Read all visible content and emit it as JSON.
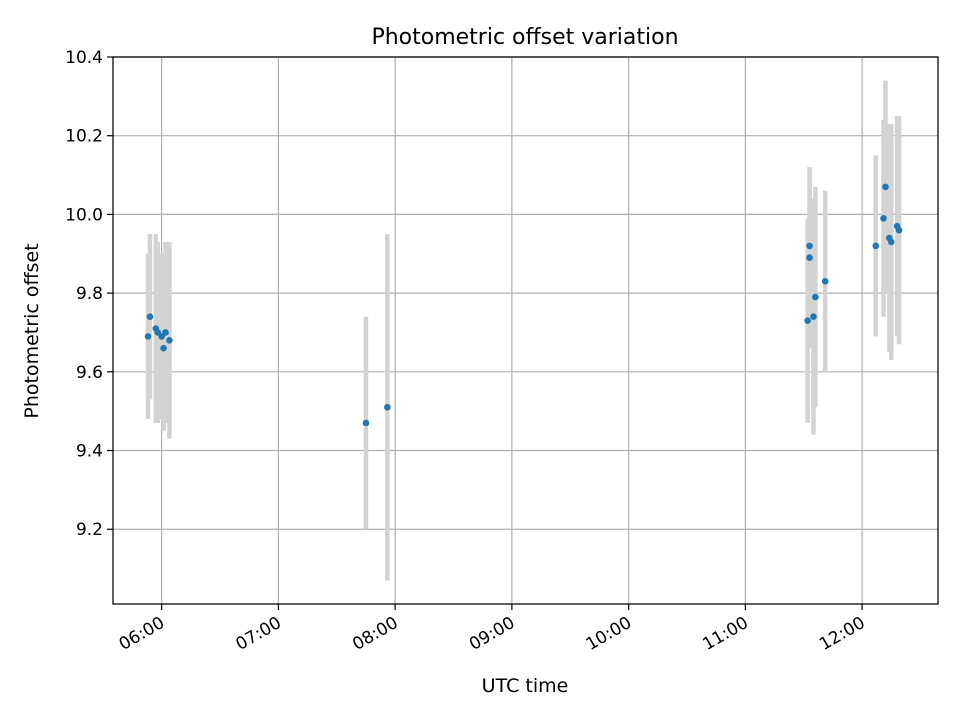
{
  "chart_data": {
    "type": "scatter",
    "title": "Photometric offset variation",
    "xlabel": "UTC time",
    "ylabel": "Photometric offset",
    "grid": true,
    "x_is_time": true,
    "xlim": [
      "05:35",
      "12:39"
    ],
    "ylim": [
      9.01,
      10.4
    ],
    "xticks": [
      "06:00",
      "07:00",
      "08:00",
      "09:00",
      "10:00",
      "11:00",
      "12:00"
    ],
    "yticks": [
      9.2,
      9.4,
      9.6,
      9.8,
      10.0,
      10.2,
      10.4
    ],
    "ytick_labels": [
      "9.2",
      "9.4",
      "9.6",
      "9.8",
      "10.0",
      "10.2",
      "10.4"
    ],
    "colors": {
      "marker": "#1f77b4",
      "errorbar": "#d3d3d3",
      "grid": "#b0b0b0"
    },
    "points": [
      {
        "x": "05:53",
        "y": 9.69,
        "err": 0.21
      },
      {
        "x": "05:54",
        "y": 9.74,
        "err": 0.21
      },
      {
        "x": "05:57",
        "y": 9.71,
        "err": 0.24
      },
      {
        "x": "05:58",
        "y": 9.7,
        "err": 0.23
      },
      {
        "x": "06:00",
        "y": 9.69,
        "err": 0.21
      },
      {
        "x": "06:01",
        "y": 9.66,
        "err": 0.21
      },
      {
        "x": "06:02",
        "y": 9.7,
        "err": 0.23
      },
      {
        "x": "06:04",
        "y": 9.68,
        "err": 0.25
      },
      {
        "x": "07:45",
        "y": 9.47,
        "err": 0.27
      },
      {
        "x": "07:56",
        "y": 9.51,
        "err": 0.44
      },
      {
        "x": "11:32",
        "y": 9.73,
        "err": 0.26
      },
      {
        "x": "11:33",
        "y": 9.89,
        "err": 0.23
      },
      {
        "x": "11:33",
        "y": 9.92,
        "err": 0.2
      },
      {
        "x": "11:35",
        "y": 9.74,
        "err": 0.3
      },
      {
        "x": "11:36",
        "y": 9.79,
        "err": 0.28
      },
      {
        "x": "11:41",
        "y": 9.83,
        "err": 0.23
      },
      {
        "x": "12:07",
        "y": 9.92,
        "err": 0.23
      },
      {
        "x": "12:11",
        "y": 9.99,
        "err": 0.25
      },
      {
        "x": "12:12",
        "y": 10.07,
        "err": 0.27
      },
      {
        "x": "12:14",
        "y": 9.94,
        "err": 0.29
      },
      {
        "x": "12:15",
        "y": 9.93,
        "err": 0.3
      },
      {
        "x": "12:18",
        "y": 9.97,
        "err": 0.28
      },
      {
        "x": "12:19",
        "y": 9.96,
        "err": 0.29
      }
    ]
  }
}
